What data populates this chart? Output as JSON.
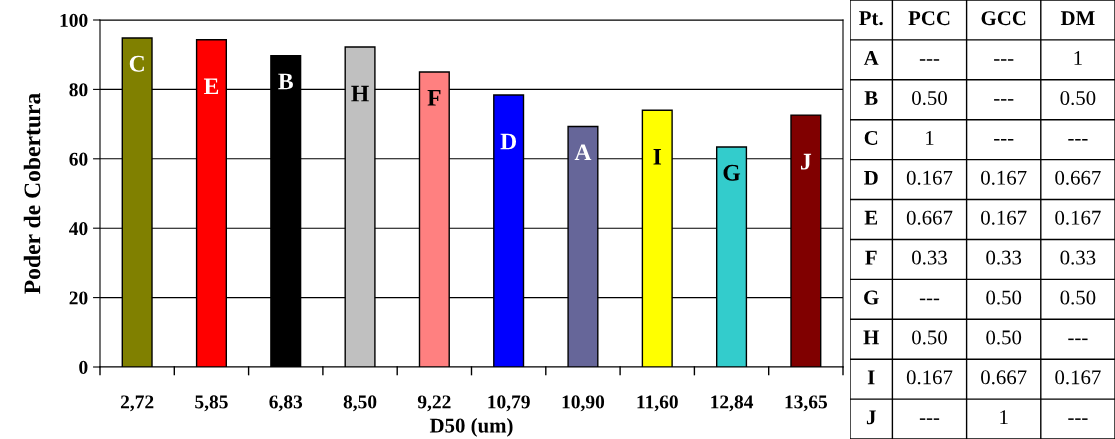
{
  "chart_data": [
    {
      "type": "bar",
      "xlabel": "D50 (um)",
      "ylabel": "Poder de Cobertura",
      "categories": [
        "2,72",
        "5,85",
        "6,83",
        "8,50",
        "9,22",
        "10,79",
        "10,90",
        "11,60",
        "12,84",
        "13,65"
      ],
      "values": [
        94.8,
        94.3,
        89.7,
        92.2,
        85,
        78.4,
        69.3,
        74,
        63.4,
        72.6
      ],
      "colors": [
        "#808000",
        "#ff0000",
        "#000000",
        "#c0c0c0",
        "#ff8080",
        "#0000ff",
        "#666699",
        "#ffff00",
        "#33cccc",
        "#800000"
      ],
      "ylim": [
        0,
        100
      ],
      "yticks": [
        0,
        20,
        40,
        60,
        80,
        100
      ],
      "grid": "y",
      "value_labels": [
        "C",
        "E",
        "B",
        "H",
        "F",
        "D",
        "A",
        "I",
        "G",
        "J"
      ]
    },
    {
      "type": "other",
      "categories": [
        "Pt.",
        "PCC",
        "GCC",
        "DM"
      ],
      "y_categories": [
        "A",
        "B",
        "C",
        "D",
        "E",
        "F",
        "G",
        "H",
        "I",
        "J"
      ],
      "cell_labels": [
        [
          "---",
          "---",
          "1"
        ],
        [
          "0.50",
          "---",
          "0.50"
        ],
        [
          "1",
          "---",
          "---"
        ],
        [
          "0.167",
          "0.167",
          "0.667"
        ],
        [
          "0.667",
          "0.167",
          "0.167"
        ],
        [
          "0.33",
          "0.33",
          "0.33"
        ],
        [
          "---",
          "0.50",
          "0.50"
        ],
        [
          "0.50",
          "0.50",
          "---"
        ],
        [
          "0.167",
          "0.667",
          "0.167"
        ],
        [
          "---",
          "1",
          "---"
        ]
      ]
    }
  ]
}
